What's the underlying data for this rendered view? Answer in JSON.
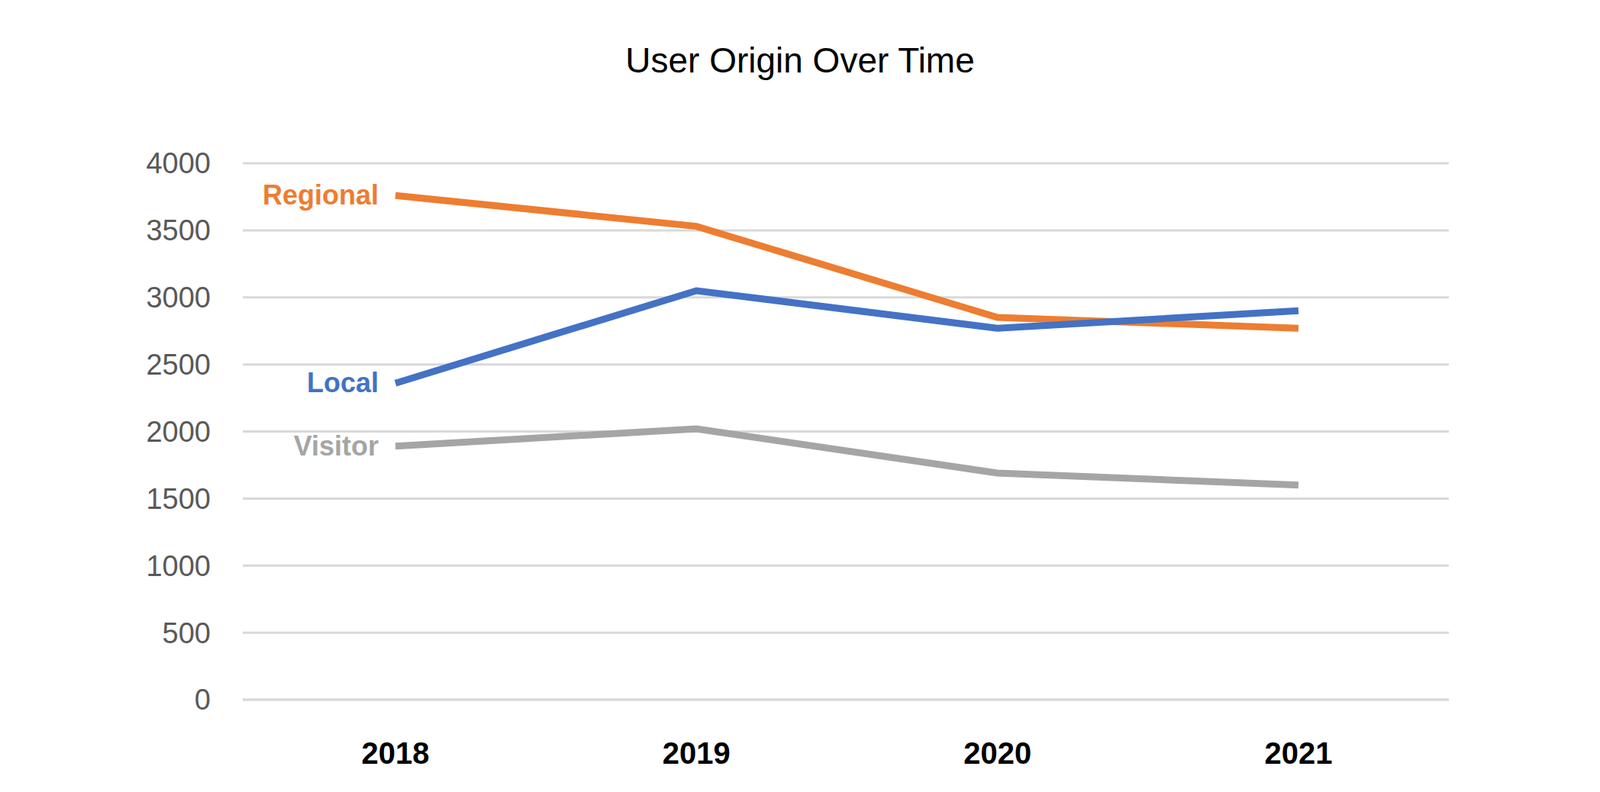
{
  "chart_data": {
    "type": "line",
    "title": "User Origin Over Time",
    "categories": [
      "2018",
      "2019",
      "2020",
      "2021"
    ],
    "series": [
      {
        "name": "Regional",
        "color": "#ed7d31",
        "values": [
          3760,
          3530,
          2850,
          2770
        ]
      },
      {
        "name": "Local",
        "color": "#4472c4",
        "values": [
          2360,
          3050,
          2770,
          2900
        ]
      },
      {
        "name": "Visitor",
        "color": "#a5a5a5",
        "values": [
          1890,
          2020,
          1690,
          1600
        ]
      }
    ],
    "ylim": [
      0,
      4000
    ],
    "yticks": [
      0,
      500,
      1000,
      1500,
      2000,
      2500,
      3000,
      3500,
      4000
    ],
    "grid": true
  }
}
